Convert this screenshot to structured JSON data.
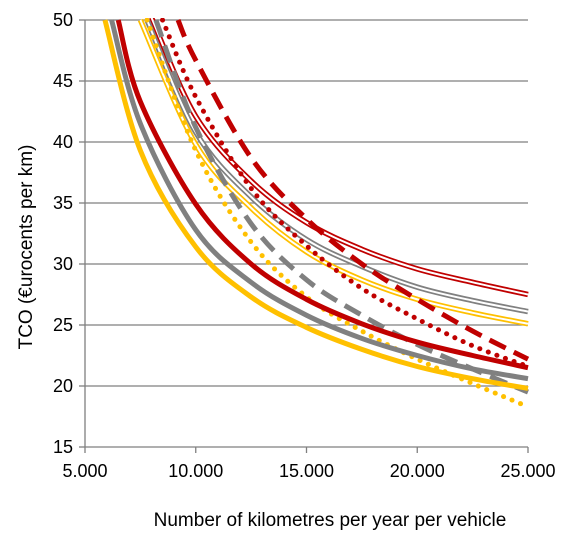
{
  "chart_data": {
    "type": "line",
    "title": "",
    "xlabel": "Number of kilometres per year per vehicle",
    "ylabel": "TCO (€urocents per km)",
    "xlim": [
      5000,
      25000
    ],
    "ylim": [
      15,
      50
    ],
    "x_ticks": [
      5000,
      10000,
      15000,
      20000,
      25000
    ],
    "x_tick_labels": [
      "5.000",
      "10.000",
      "15.000",
      "20.000",
      "25.000"
    ],
    "y_ticks": [
      15,
      20,
      25,
      30,
      35,
      40,
      45,
      50
    ],
    "y_tick_labels": [
      "15",
      "20",
      "25",
      "30",
      "35",
      "40",
      "45",
      "50"
    ],
    "grid": "horizontal",
    "legend": "none",
    "colors": {
      "red": "#c00000",
      "gray": "#808080",
      "yellow": "#ffc000",
      "grid": "#7f7f7f"
    },
    "series": [
      {
        "color": "red",
        "style": "double",
        "x": [
          8000,
          10000,
          12500,
          15000,
          17500,
          20000,
          22500,
          25000
        ],
        "y": [
          50.2,
          42.1,
          36.8,
          33.4,
          31.2,
          29.6,
          28.5,
          27.5
        ]
      },
      {
        "color": "gray",
        "style": "double",
        "x": [
          7800,
          10000,
          12500,
          15000,
          17500,
          20000,
          22500,
          25000
        ],
        "y": [
          50.0,
          40.8,
          35.5,
          32.0,
          29.8,
          28.1,
          27.0,
          26.1
        ]
      },
      {
        "color": "yellow",
        "style": "double",
        "x": [
          7500,
          10000,
          12500,
          15000,
          17500,
          20000,
          22500,
          25000
        ],
        "y": [
          50.0,
          39.8,
          34.6,
          31.0,
          28.7,
          27.1,
          26.0,
          25.1
        ]
      },
      {
        "color": "red",
        "style": "dashed",
        "x": [
          9200,
          10000,
          12500,
          15000,
          17500,
          20000,
          22500,
          25000
        ],
        "y": [
          50.0,
          46.7,
          38.7,
          33.7,
          30.0,
          27.1,
          24.5,
          22.2
        ]
      },
      {
        "color": "red",
        "style": "dotted",
        "x": [
          8500,
          10000,
          12500,
          15000,
          17500,
          20000,
          22500,
          25000
        ],
        "y": [
          50.0,
          43.7,
          36.2,
          31.5,
          28.0,
          25.5,
          23.3,
          21.6
        ]
      },
      {
        "color": "gray",
        "style": "dashed",
        "x": [
          8200,
          10000,
          12500,
          15000,
          17500,
          20000,
          22500,
          25000
        ],
        "y": [
          50.0,
          41.2,
          33.3,
          28.7,
          25.8,
          23.4,
          21.4,
          19.5
        ]
      },
      {
        "color": "yellow",
        "style": "dotted",
        "x": [
          7800,
          10000,
          12500,
          15000,
          17500,
          20000,
          22500,
          25000
        ],
        "y": [
          50.0,
          39.3,
          31.8,
          27.3,
          24.5,
          22.2,
          20.2,
          18.3
        ]
      },
      {
        "color": "red",
        "style": "solid",
        "x": [
          6500,
          7500,
          10000,
          12500,
          15000,
          17500,
          20000,
          22500,
          25000
        ],
        "y": [
          50.0,
          43.3,
          34.9,
          30.0,
          27.1,
          25.1,
          23.6,
          22.5,
          21.5
        ]
      },
      {
        "color": "gray",
        "style": "solid",
        "x": [
          6200,
          7500,
          10000,
          12500,
          15000,
          17500,
          20000,
          22500,
          25000
        ],
        "y": [
          50.0,
          41.5,
          32.8,
          28.5,
          25.8,
          23.9,
          22.5,
          21.4,
          20.6
        ]
      },
      {
        "color": "yellow",
        "style": "solid",
        "x": [
          5900,
          7500,
          10000,
          12500,
          15000,
          17500,
          20000,
          22500,
          25000
        ],
        "y": [
          50.0,
          39.3,
          31.4,
          27.3,
          24.8,
          23.0,
          21.6,
          20.6,
          19.8
        ]
      }
    ]
  }
}
